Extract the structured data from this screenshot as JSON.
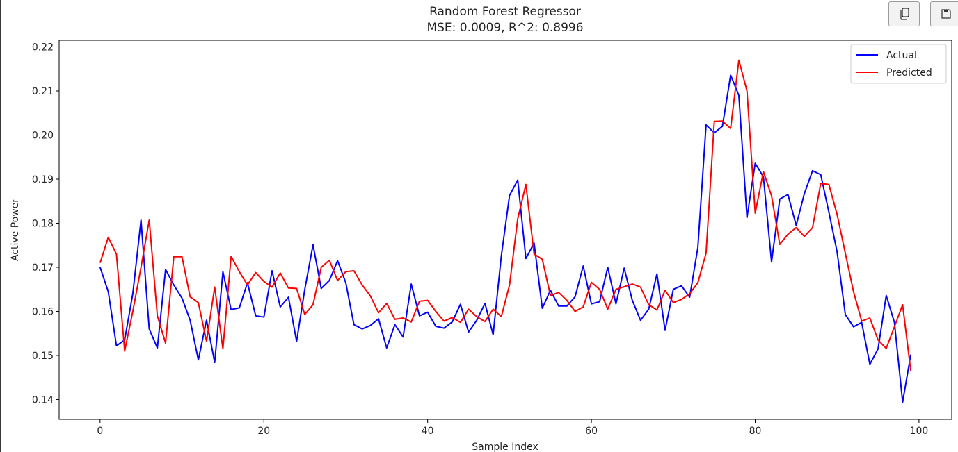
{
  "toolbar": {
    "copy_icon": "copy-icon",
    "save_icon": "floppy-disk-icon"
  },
  "chart_data": {
    "type": "line",
    "title": "Random Forest Regressor",
    "subtitle": "MSE: 0.0009, R^2: 0.8996",
    "xlabel": "Sample Index",
    "ylabel": "Active Power",
    "xlim": [
      -5,
      104
    ],
    "ylim": [
      0.1355,
      0.2215
    ],
    "xticks": [
      0,
      20,
      40,
      60,
      80,
      100
    ],
    "xtick_labels": [
      "0",
      "20",
      "40",
      "60",
      "80",
      "100"
    ],
    "yticks": [
      0.14,
      0.15,
      0.16,
      0.17,
      0.18,
      0.19,
      0.2,
      0.21,
      0.22
    ],
    "ytick_labels": [
      "0.14",
      "0.15",
      "0.16",
      "0.17",
      "0.18",
      "0.19",
      "0.20",
      "0.21",
      "0.22"
    ],
    "grid": false,
    "legend_position": "top-right",
    "x": [
      0,
      1,
      2,
      3,
      4,
      5,
      6,
      7,
      8,
      9,
      10,
      11,
      12,
      13,
      14,
      15,
      16,
      17,
      18,
      19,
      20,
      21,
      22,
      23,
      24,
      25,
      26,
      27,
      28,
      29,
      30,
      31,
      32,
      33,
      34,
      35,
      36,
      37,
      38,
      39,
      40,
      41,
      42,
      43,
      44,
      45,
      46,
      47,
      48,
      49,
      50,
      51,
      52,
      53,
      54,
      55,
      56,
      57,
      58,
      59,
      60,
      61,
      62,
      63,
      64,
      65,
      66,
      67,
      68,
      69,
      70,
      71,
      72,
      73,
      74,
      75,
      76,
      77,
      78,
      79,
      80,
      81,
      82,
      83,
      84,
      85,
      86,
      87,
      88,
      89,
      90,
      91,
      92,
      93,
      94,
      95,
      96,
      97,
      98,
      99
    ],
    "series": [
      {
        "name": "Actual",
        "color": "#0000ff",
        "values": [
          0.17,
          0.1645,
          0.1522,
          0.1535,
          0.164,
          0.1807,
          0.156,
          0.1517,
          0.1695,
          0.166,
          0.163,
          0.158,
          0.149,
          0.158,
          0.1484,
          0.169,
          0.1604,
          0.1608,
          0.1665,
          0.159,
          0.1587,
          0.1692,
          0.161,
          0.1632,
          0.1532,
          0.165,
          0.1751,
          0.1652,
          0.167,
          0.1715,
          0.1665,
          0.157,
          0.156,
          0.1568,
          0.1583,
          0.1517,
          0.157,
          0.1542,
          0.1662,
          0.159,
          0.1598,
          0.1566,
          0.1562,
          0.1576,
          0.1616,
          0.1553,
          0.158,
          0.1618,
          0.1547,
          0.1726,
          0.1863,
          0.1898,
          0.172,
          0.1755,
          0.1607,
          0.1648,
          0.1612,
          0.1612,
          0.1633,
          0.1703,
          0.1617,
          0.1622,
          0.17,
          0.1617,
          0.1698,
          0.1625,
          0.158,
          0.1605,
          0.1685,
          0.1557,
          0.165,
          0.1658,
          0.1632,
          0.1745,
          0.2023,
          0.2005,
          0.202,
          0.2136,
          0.209,
          0.1813,
          0.1936,
          0.1905,
          0.1712,
          0.1855,
          0.1865,
          0.1795,
          0.1867,
          0.1919,
          0.191,
          0.1825,
          0.1735,
          0.1593,
          0.1565,
          0.1575,
          0.148,
          0.1515,
          0.1636,
          0.1575,
          0.1394,
          0.1502
        ]
      },
      {
        "name": "Predicted",
        "color": "#ff0000",
        "values": [
          0.171,
          0.1768,
          0.173,
          0.151,
          0.16,
          0.17,
          0.1807,
          0.159,
          0.1528,
          0.1724,
          0.1724,
          0.1633,
          0.162,
          0.1532,
          0.1655,
          0.1515,
          0.1725,
          0.169,
          0.166,
          0.1688,
          0.1668,
          0.1655,
          0.1687,
          0.1653,
          0.1652,
          0.1593,
          0.1615,
          0.17,
          0.1716,
          0.167,
          0.169,
          0.1692,
          0.166,
          0.1635,
          0.1597,
          0.1618,
          0.1582,
          0.1585,
          0.1576,
          0.1623,
          0.1625,
          0.16,
          0.1578,
          0.1586,
          0.1575,
          0.1605,
          0.1588,
          0.1577,
          0.1605,
          0.1588,
          0.166,
          0.181,
          0.1888,
          0.173,
          0.1718,
          0.1636,
          0.1643,
          0.1625,
          0.16,
          0.161,
          0.1666,
          0.165,
          0.1605,
          0.165,
          0.1656,
          0.1662,
          0.1655,
          0.1615,
          0.1603,
          0.1648,
          0.162,
          0.1627,
          0.164,
          0.1665,
          0.1732,
          0.2031,
          0.2032,
          0.2015,
          0.217,
          0.21,
          0.1823,
          0.1917,
          0.1862,
          0.1752,
          0.1775,
          0.179,
          0.177,
          0.179,
          0.189,
          0.1888,
          0.182,
          0.1732,
          0.1645,
          0.1578,
          0.1585,
          0.1535,
          0.1516,
          0.1565,
          0.1615,
          0.1465
        ]
      }
    ]
  }
}
